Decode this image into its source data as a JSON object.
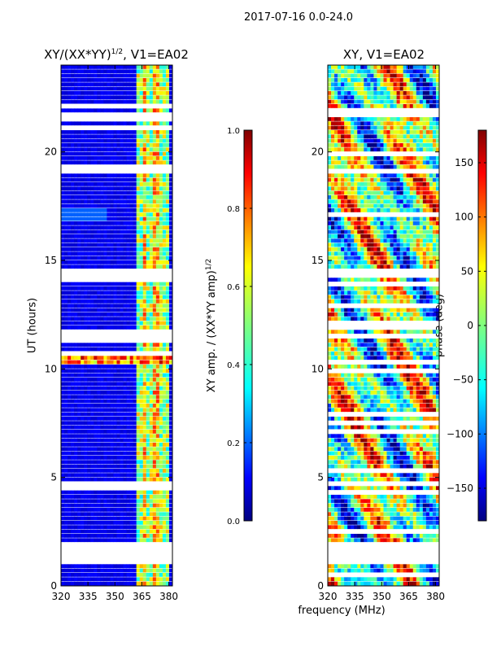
{
  "figure": {
    "suptitle": "2017-07-16 0.0-24.0",
    "ylabel": "UT (hours)",
    "xlabel": "frequency (MHz)"
  },
  "colors": {
    "jet": [
      "#00007f",
      "#0000ff",
      "#007fff",
      "#00ffff",
      "#7fff7f",
      "#ffff00",
      "#ff7f00",
      "#ff0000",
      "#7f0000"
    ]
  },
  "chart_data": [
    {
      "type": "heatmap",
      "title": "XY/(XX*YY)^1/2, V1=EA02",
      "title_base": "XY/(XX*YY)",
      "title_sup": "1/2",
      "title_tail": ", V1=EA02",
      "xlabel": "",
      "ylabel": "UT (hours)",
      "xlim": [
        320,
        382
      ],
      "ylim": [
        0,
        24
      ],
      "xticks": [
        320,
        335,
        350,
        365,
        380
      ],
      "yticks": [
        0,
        5,
        10,
        15,
        20
      ],
      "colorbar": {
        "label": "XY amp. / (XX*YY amp)^1/2",
        "label_base": "XY amp. / (XX*YY amp)",
        "label_sup": "1/2",
        "range": [
          0.0,
          1.0
        ],
        "ticks": [
          "0.0",
          "0.2",
          "0.4",
          "0.6",
          "0.8",
          "1.0"
        ]
      },
      "gaps_hours": [
        [
          1.0,
          2.1
        ],
        [
          4.4,
          4.8
        ],
        [
          11.2,
          11.55
        ],
        [
          14.3,
          14.55
        ]
      ],
      "bright_band_mhz": [
        362,
        381
      ],
      "description_values": "low amplitude (~0.05) below 362 MHz, 0.3-0.8 between 362 and 381 MHz; strong RFI row near 10.4 h"
    },
    {
      "type": "heatmap",
      "title": "XY, V1=EA02",
      "xlabel": "frequency (MHz)",
      "ylabel": "",
      "xlim": [
        320,
        382
      ],
      "ylim": [
        0,
        24
      ],
      "xticks": [
        320,
        335,
        350,
        365,
        380
      ],
      "yticks": [
        0,
        5,
        10,
        15,
        20
      ],
      "colorbar": {
        "label": "phase (deg)",
        "range": [
          -180,
          180
        ],
        "ticks": [
          "150",
          "100",
          "50",
          "0",
          "−50",
          "−100",
          "−150"
        ]
      },
      "gaps_hours": [
        [
          1.0,
          2.1
        ],
        [
          4.6,
          4.8
        ],
        [
          11.4,
          11.6
        ],
        [
          14.3,
          14.55
        ]
      ]
    }
  ]
}
